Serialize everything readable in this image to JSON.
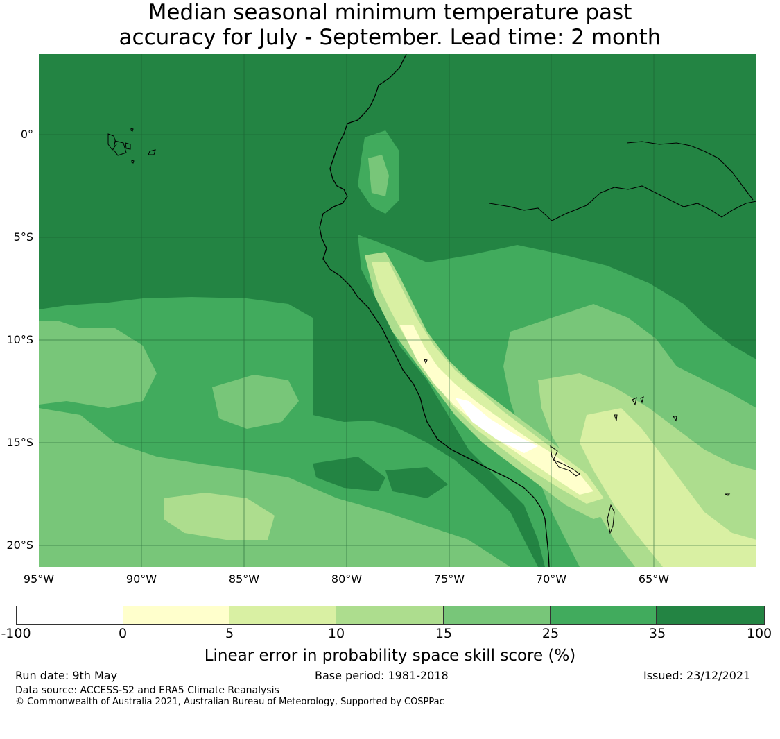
{
  "title": {
    "line1": "Median seasonal minimum temperature past",
    "line2": "accuracy for July - September. Lead time: 2 month"
  },
  "map": {
    "lat_labels": [
      "0°",
      "5°S",
      "10°S",
      "15°S",
      "20°S"
    ],
    "lon_labels": [
      "95°W",
      "90°W",
      "85°W",
      "80°W",
      "75°W",
      "70°W",
      "65°W"
    ]
  },
  "colorbar": {
    "ticks": [
      "-100",
      "0",
      "5",
      "10",
      "15",
      "25",
      "35",
      "100"
    ],
    "colors": [
      "#ffffff",
      "#ffffcc",
      "#d9f0a3",
      "#addd8e",
      "#78c679",
      "#41ab5d",
      "#238443"
    ],
    "label": "Linear error in probability space skill score (%)"
  },
  "footer": {
    "run_date": "Run date: 9th May",
    "base_period": "Base period: 1981-2018",
    "issued": "Issued: 23/12/2021",
    "data_source": "Data source: ACCESS-S2 and ERA5 Climate Reanalysis",
    "copyright": "© Commonwealth of Australia 2021, Australian Bureau of Meteorology, Supported by COSPPac"
  }
}
